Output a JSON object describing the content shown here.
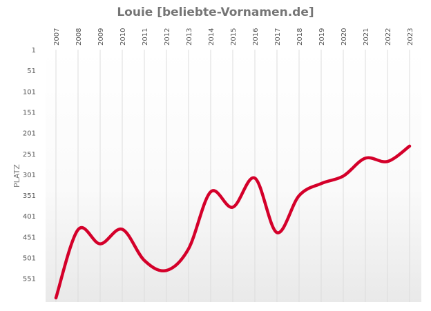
{
  "chart_data": {
    "type": "line",
    "title": "Louie [beliebte-Vornamen.de]",
    "ylabel": "PLATZ",
    "xlabel": "",
    "x": [
      "2007",
      "2008",
      "2009",
      "2010",
      "2011",
      "2012",
      "2013",
      "2014",
      "2015",
      "2016",
      "2017",
      "2018",
      "2019",
      "2020",
      "2021",
      "2022",
      "2023"
    ],
    "y_ticks": [
      "1",
      "51",
      "101",
      "151",
      "201",
      "251",
      "301",
      "351",
      "401",
      "451",
      "501",
      "551"
    ],
    "y_tick_values": [
      1,
      51,
      101,
      151,
      201,
      251,
      301,
      351,
      401,
      451,
      501,
      551
    ],
    "ylim": [
      1,
      601
    ],
    "y_reversed": true,
    "series": [
      {
        "values": [
          598,
          434,
          468,
          433,
          508,
          532,
          480,
          343,
          380,
          310,
          441,
          352,
          323,
          305,
          262,
          270,
          233
        ]
      }
    ],
    "grid": "vertical",
    "line_color": "#d4002a"
  }
}
